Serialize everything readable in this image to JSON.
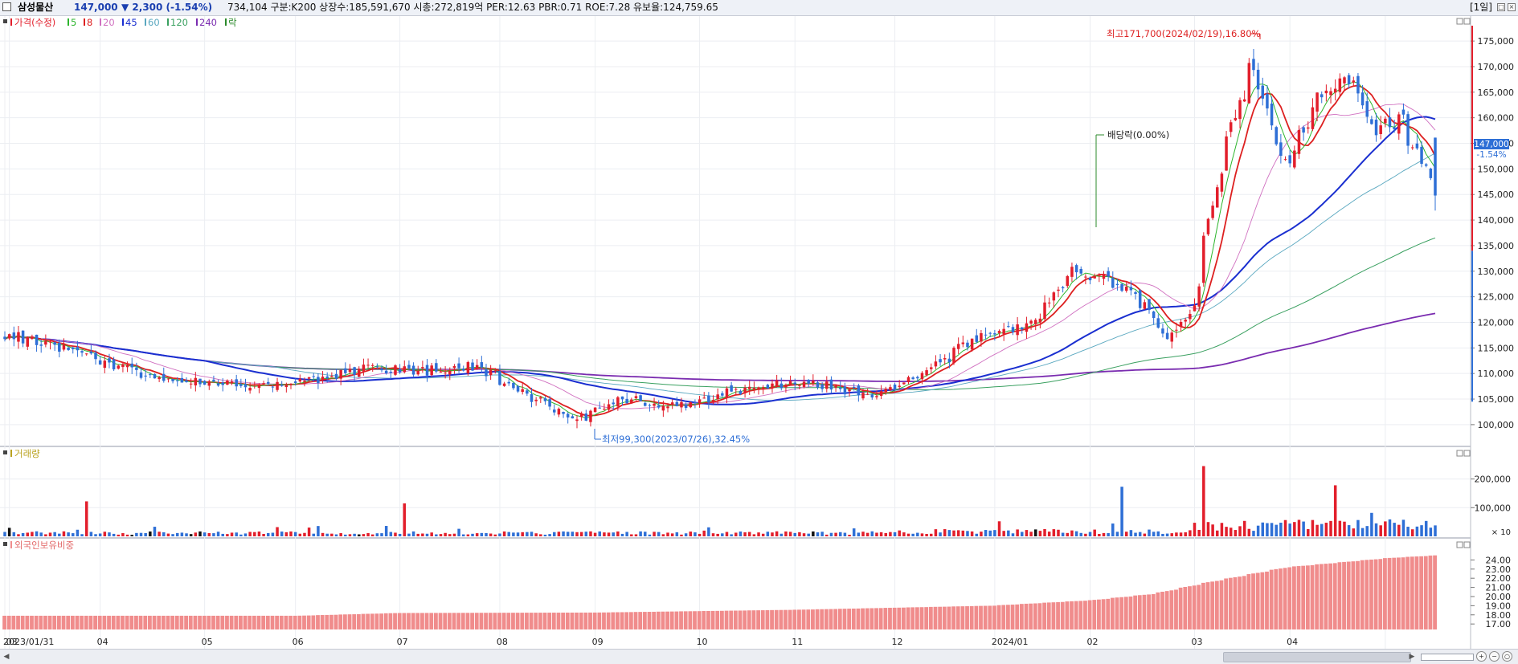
{
  "title_bar": {
    "name": "삼성물산",
    "price": "147,000",
    "change": "▼ 2,300 (-1.54%)",
    "info": "734,104  구분:K200  상장수:185,591,670  시총:272,819억  PER:12.63  PBR:0.71  ROE:7.28  유보율:124,759.65",
    "period": "[1일]"
  },
  "legend": {
    "price_label": "가격(수정)",
    "ma": [
      {
        "label": "5",
        "color": "#2db52d"
      },
      {
        "label": "8",
        "color": "#dd2020"
      },
      {
        "label": "20",
        "color": "#d070c0"
      },
      {
        "label": "45",
        "color": "#1a2fd0"
      },
      {
        "label": "60",
        "color": "#5aa8c0"
      },
      {
        "label": "120",
        "color": "#3aa060"
      },
      {
        "label": "240",
        "color": "#7a2cb0"
      }
    ],
    "ex_label": "락",
    "volume_label": "거래량",
    "foreign_label": "외국인보유비중"
  },
  "annotations": {
    "high": "최고171,700(2024/02/19),16.80%",
    "low": "최저99,300(2023/07/26),32.45%",
    "dividend": "배당락(0.00%)"
  },
  "current_price_tag": "147,000",
  "current_change_tag": "-1.54%",
  "colors": {
    "up": "#e21e2b",
    "down": "#2e6fd6",
    "ma5": "#2db52d",
    "ma8": "#dd2020",
    "ma20": "#d070c0",
    "ma45": "#1a2fd0",
    "ma60": "#5aa8c0",
    "ma120": "#3aa060",
    "ma240": "#7a2cb0",
    "foreign": "#f08c8c"
  },
  "chart_data": [
    {
      "type": "candlestick",
      "name": "price",
      "ylim": [
        97000,
        178000
      ],
      "y_ticks": [
        "100,000",
        "105,000",
        "110,000",
        "115,000",
        "120,000",
        "125,000",
        "130,000",
        "135,000",
        "140,000",
        "145,000",
        "150,000",
        "155,000",
        "160,000",
        "165,000",
        "170,000",
        "175,000"
      ],
      "x_ticks": [
        "2023/01/31",
        "03",
        "04",
        "05",
        "06",
        "07",
        "08",
        "09",
        "10",
        "11",
        "12",
        "2024/01",
        "02",
        "03",
        "04"
      ],
      "close_anchors": [
        {
          "date": "2023-01-31",
          "close": 117500
        },
        {
          "date": "2023-02-15",
          "close": 115500
        },
        {
          "date": "2023-03-01",
          "close": 112500
        },
        {
          "date": "2023-03-20",
          "close": 108500
        },
        {
          "date": "2023-04-10",
          "close": 108000
        },
        {
          "date": "2023-04-28",
          "close": 107500
        },
        {
          "date": "2023-05-20",
          "close": 111000
        },
        {
          "date": "2023-06-10",
          "close": 110500
        },
        {
          "date": "2023-06-25",
          "close": 111500
        },
        {
          "date": "2023-07-10",
          "close": 106000
        },
        {
          "date": "2023-07-26",
          "close": 101000
        },
        {
          "date": "2023-08-10",
          "close": 105000
        },
        {
          "date": "2023-08-28",
          "close": 103500
        },
        {
          "date": "2023-09-15",
          "close": 107000
        },
        {
          "date": "2023-10-05",
          "close": 108500
        },
        {
          "date": "2023-10-25",
          "close": 105500
        },
        {
          "date": "2023-11-10",
          "close": 110000
        },
        {
          "date": "2023-11-25",
          "close": 116500
        },
        {
          "date": "2023-12-15",
          "close": 120000
        },
        {
          "date": "2023-12-26",
          "close": 131000
        },
        {
          "date": "2024-01-05",
          "close": 128000
        },
        {
          "date": "2024-01-15",
          "close": 124500
        },
        {
          "date": "2024-01-25",
          "close": 117000
        },
        {
          "date": "2024-01-31",
          "close": 121000
        },
        {
          "date": "2024-02-05",
          "close": 138000
        },
        {
          "date": "2024-02-10",
          "close": 152000
        },
        {
          "date": "2024-02-19",
          "close": 170000
        },
        {
          "date": "2024-03-01",
          "close": 150000
        },
        {
          "date": "2024-03-10",
          "close": 164000
        },
        {
          "date": "2024-03-20",
          "close": 167000
        },
        {
          "date": "2024-03-28",
          "close": 158000
        },
        {
          "date": "2024-04-05",
          "close": 159500
        },
        {
          "date": "2024-04-12",
          "close": 150500
        },
        {
          "date": "2024-04-16",
          "close": 147000
        }
      ],
      "high": {
        "date": "2024-02-19",
        "value": 171700
      },
      "low": {
        "date": "2023-07-26",
        "value": 99300
      },
      "last": {
        "open": 147000,
        "close": 147000,
        "change_pct": -1.54
      }
    },
    {
      "type": "bar",
      "name": "volume",
      "y_ticks": [
        "200,000",
        "100,000",
        "× 10"
      ],
      "ylim": [
        0,
        280000
      ],
      "spikes": [
        {
          "date": "2023-02-24",
          "value": 122000
        },
        {
          "date": "2023-06-02",
          "value": 115000
        },
        {
          "date": "2024-01-10",
          "value": 173000
        },
        {
          "date": "2024-02-05",
          "value": 245000
        },
        {
          "date": "2024-03-15",
          "value": 178000
        }
      ]
    },
    {
      "type": "bar",
      "name": "foreign_ownership",
      "y_ticks": [
        "24.00",
        "23.00",
        "22.00",
        "21.00",
        "20.00",
        "19.00",
        "18.00",
        "17.00"
      ],
      "ylim": [
        16.4,
        25.0
      ],
      "anchors": [
        {
          "date": "2023-01-31",
          "value": 17.9
        },
        {
          "date": "2023-05-01",
          "value": 17.9
        },
        {
          "date": "2023-06-01",
          "value": 18.2
        },
        {
          "date": "2023-08-01",
          "value": 18.25
        },
        {
          "date": "2023-10-01",
          "value": 18.55
        },
        {
          "date": "2023-12-01",
          "value": 19.0
        },
        {
          "date": "2024-01-01",
          "value": 19.6
        },
        {
          "date": "2024-01-20",
          "value": 20.3
        },
        {
          "date": "2024-02-05",
          "value": 21.5
        },
        {
          "date": "2024-03-01",
          "value": 23.2
        },
        {
          "date": "2024-04-01",
          "value": 24.2
        },
        {
          "date": "2024-04-16",
          "value": 24.5
        }
      ]
    }
  ]
}
